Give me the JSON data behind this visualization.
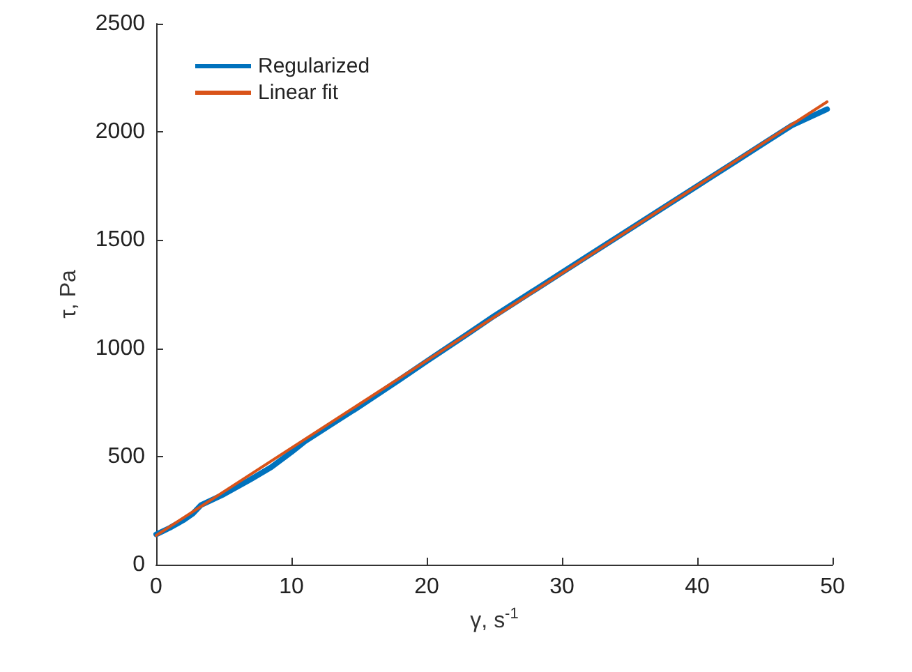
{
  "chart_data": {
    "type": "line",
    "xlabel": "γ, s$^{-1}$",
    "ylabel": "τ, Pa",
    "xlim": [
      0,
      50
    ],
    "ylim": [
      0,
      2500
    ],
    "xticks": [
      0,
      10,
      20,
      30,
      40,
      50
    ],
    "yticks": [
      0,
      500,
      1000,
      1500,
      2000,
      2500
    ],
    "grid": false,
    "legend": "top left",
    "marker": "none",
    "line_style": "solid",
    "series": [
      {
        "name": "Regularized",
        "color": "#0072bd",
        "x": [
          0,
          1,
          2,
          2.7,
          3.3,
          5,
          7,
          8.5,
          10,
          11,
          13,
          15,
          18,
          20,
          23,
          25,
          28,
          30,
          33,
          35,
          38,
          40,
          43,
          45,
          47,
          49.6
        ],
        "values": [
          140,
          170,
          205,
          235,
          275,
          325,
          395,
          450,
          520,
          570,
          650,
          730,
          855,
          940,
          1065,
          1150,
          1270,
          1350,
          1470,
          1550,
          1670,
          1750,
          1870,
          1950,
          2030,
          2105
        ]
      },
      {
        "name": "Linear fit",
        "color": "#d95319",
        "x": [
          0,
          49.6
        ],
        "values": [
          135,
          2139
        ]
      }
    ]
  }
}
